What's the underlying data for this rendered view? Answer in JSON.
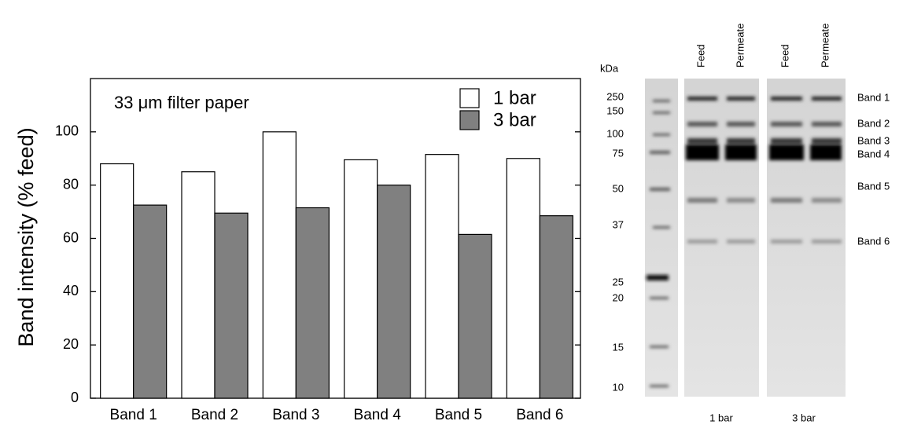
{
  "chart_data": {
    "type": "bar",
    "title": "33 μm filter paper",
    "y_label": "Band intensity (% feed)",
    "categories": [
      "Band 1",
      "Band 2",
      "Band 3",
      "Band 4",
      "Band 5",
      "Band 6"
    ],
    "series": [
      {
        "name": "1 bar",
        "color": "#ffffff",
        "values": [
          88,
          85,
          100,
          89.5,
          91.5,
          90
        ]
      },
      {
        "name": "3 bar",
        "color": "#808080",
        "values": [
          72.5,
          69.5,
          71.5,
          80,
          61.5,
          68.5
        ]
      }
    ],
    "ylim": [
      0,
      120
    ],
    "yticks": [
      0,
      20,
      40,
      60,
      80,
      100
    ],
    "grid": false,
    "legend": "top-right"
  },
  "gel": {
    "unit": "kDa",
    "markers": [
      250,
      150,
      100,
      75,
      50,
      37,
      25,
      20,
      15,
      10
    ],
    "lanes": [
      "Feed",
      "Permeate",
      "Feed",
      "Permeate"
    ],
    "bands": [
      "Band 1",
      "Band 2",
      "Band 3",
      "Band 4",
      "Band 5",
      "Band 6"
    ],
    "conditions": [
      "1 bar",
      "3 bar"
    ]
  }
}
